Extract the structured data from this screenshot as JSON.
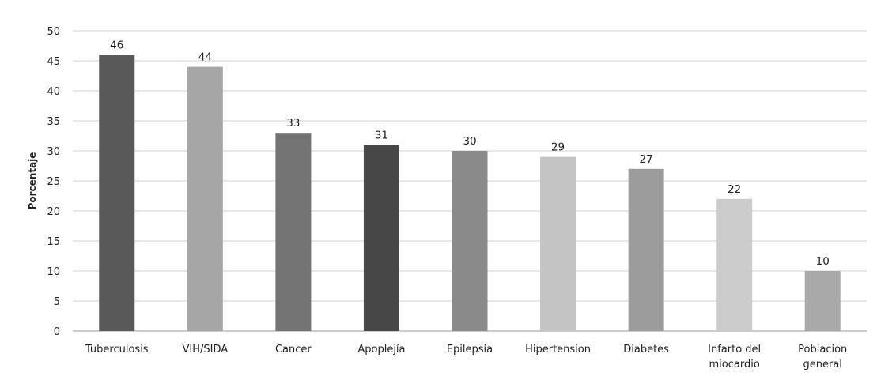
{
  "chart_data": {
    "type": "bar",
    "title": "",
    "xlabel": "",
    "ylabel": "Porcentaje",
    "ylim": [
      0,
      50
    ],
    "ytick_step": 5,
    "grid": true,
    "legend": "none",
    "categories": [
      [
        "Tuberculosis"
      ],
      [
        "VIH/SIDA"
      ],
      [
        "Cancer"
      ],
      [
        "Apoplejía"
      ],
      [
        "Epilepsia"
      ],
      [
        "Hipertension"
      ],
      [
        "Diabetes"
      ],
      [
        "Infarto del",
        "miocardio"
      ],
      [
        "Poblacion",
        "general"
      ]
    ],
    "values": [
      46,
      44,
      33,
      31,
      30,
      29,
      27,
      22,
      10
    ],
    "colors": [
      "#595959",
      "#a6a6a6",
      "#737373",
      "#474747",
      "#8a8a8a",
      "#c4c4c4",
      "#9c9c9c",
      "#cccccc",
      "#a9a9a9"
    ]
  }
}
